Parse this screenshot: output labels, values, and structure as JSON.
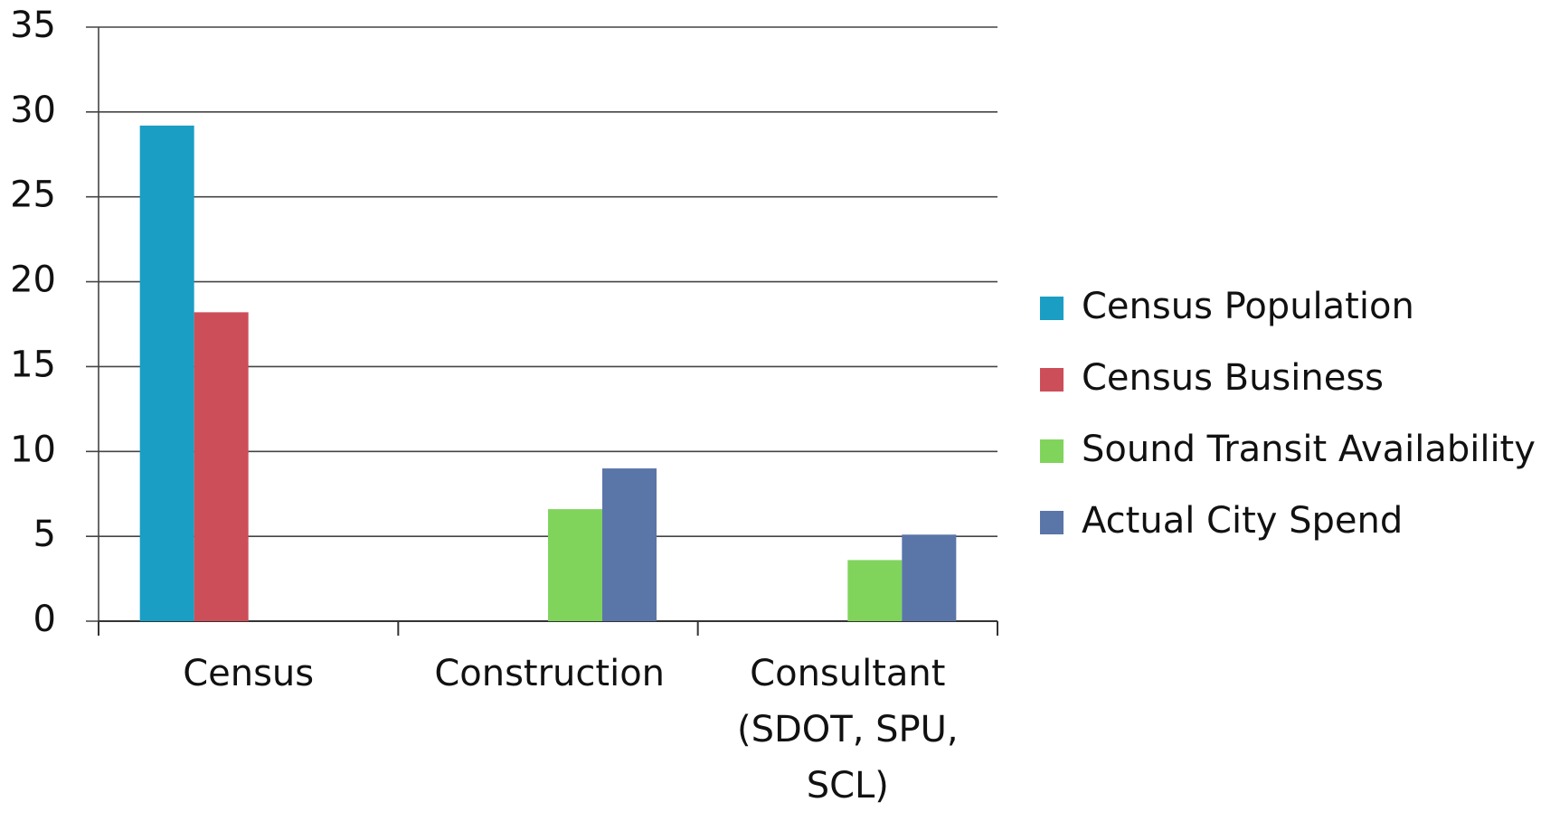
{
  "chart_data": {
    "type": "bar",
    "categories": [
      "Census",
      "Construction",
      "Consultant (SDOT, SPU, SCL)"
    ],
    "series": [
      {
        "name": "Census Population",
        "color": "#1a9ec4",
        "values": [
          29.2,
          null,
          null
        ]
      },
      {
        "name": "Census Business",
        "color": "#cc4e58",
        "values": [
          18.2,
          null,
          null
        ]
      },
      {
        "name": "Sound Transit Availability",
        "color": "#80d45c",
        "values": [
          null,
          6.6,
          3.6
        ]
      },
      {
        "name": "Actual City Spend",
        "color": "#5a75a8",
        "values": [
          null,
          9,
          5.1
        ]
      }
    ],
    "ylim": [
      0,
      35
    ],
    "yticks": [
      0,
      5,
      10,
      15,
      20,
      25,
      30,
      35
    ],
    "grid": true,
    "legend": "right"
  }
}
